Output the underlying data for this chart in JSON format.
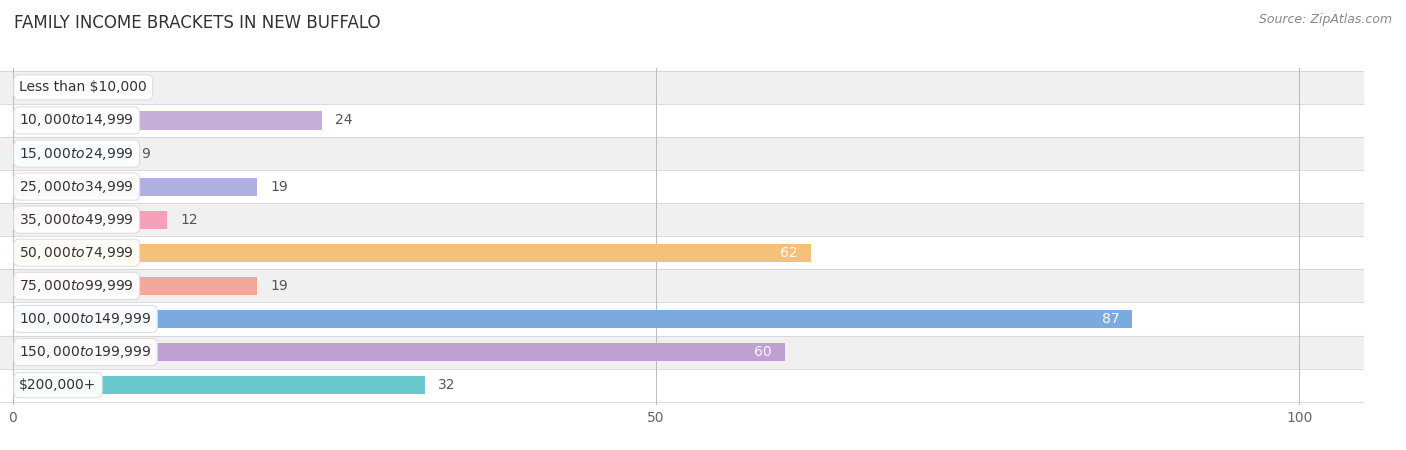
{
  "title": "FAMILY INCOME BRACKETS IN NEW BUFFALO",
  "source": "Source: ZipAtlas.com",
  "categories": [
    "Less than $10,000",
    "$10,000 to $14,999",
    "$15,000 to $24,999",
    "$25,000 to $34,999",
    "$35,000 to $49,999",
    "$50,000 to $74,999",
    "$75,000 to $99,999",
    "$100,000 to $149,999",
    "$150,000 to $199,999",
    "$200,000+"
  ],
  "values": [
    0,
    24,
    9,
    19,
    12,
    62,
    19,
    87,
    60,
    32
  ],
  "bar_colors": [
    "#aed4ea",
    "#c5aed8",
    "#72cac8",
    "#b0b0e0",
    "#f5a0b8",
    "#f5c07a",
    "#f0a898",
    "#7aabdc",
    "#c0a0d0",
    "#68c8cc"
  ],
  "xlim": [
    0,
    100
  ],
  "xticks": [
    0,
    50,
    100
  ],
  "background_color": "#ffffff",
  "row_alt_color": "#f0f0f0",
  "row_main_color": "#ffffff",
  "label_bg_color": "#ffffff",
  "label_color_dark": "#555555",
  "label_color_white": "#ffffff",
  "white_threshold": 55,
  "bar_height": 0.55,
  "title_fontsize": 12,
  "source_fontsize": 9,
  "tick_fontsize": 10,
  "value_fontsize": 10,
  "category_fontsize": 10
}
